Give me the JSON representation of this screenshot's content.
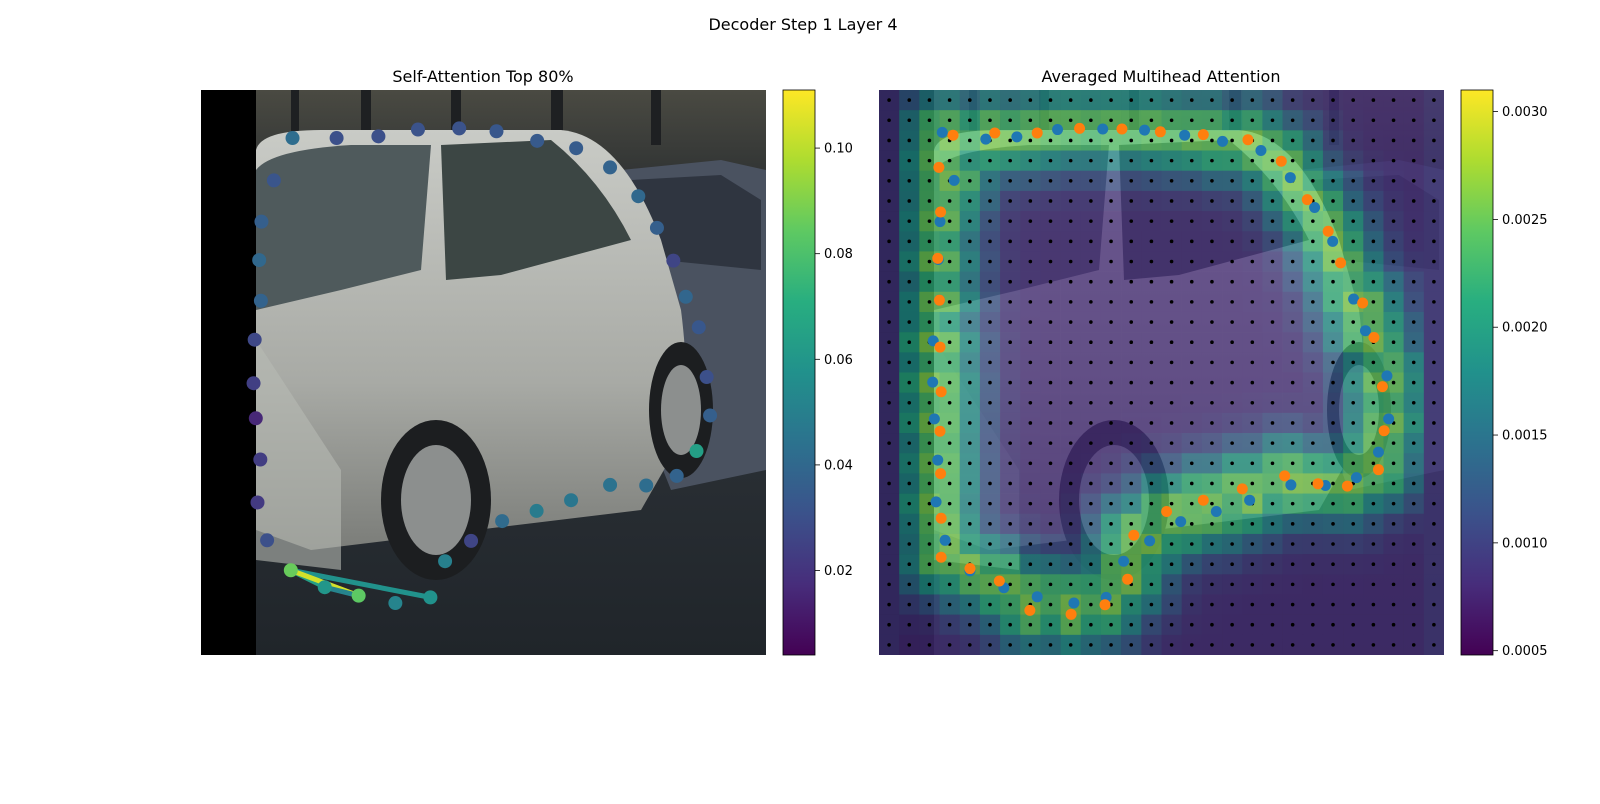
{
  "figure": {
    "suptitle": "Decoder Step 1 Layer 4"
  },
  "chart_data": [
    {
      "type": "scatter",
      "title": "Self-Attention Top 80%",
      "xlabel": "",
      "ylabel": "",
      "xlim": [
        0,
        1
      ],
      "ylim": [
        1,
        0
      ],
      "background": "photo: silver hatchback car on street, black strip on left edge",
      "grid": false,
      "colorbar": {
        "colormap": "viridis",
        "range": [
          0.004,
          0.111
        ],
        "ticks": [
          0.02,
          0.04,
          0.06,
          0.08,
          0.1
        ],
        "tick_labels": [
          "0.02",
          "0.04",
          "0.06",
          "0.08",
          "0.10"
        ]
      },
      "points": [
        {
          "x": 0.162,
          "y": 0.085,
          "v": 0.042
        },
        {
          "x": 0.24,
          "y": 0.085,
          "v": 0.03
        },
        {
          "x": 0.314,
          "y": 0.082,
          "v": 0.03
        },
        {
          "x": 0.384,
          "y": 0.07,
          "v": 0.031
        },
        {
          "x": 0.457,
          "y": 0.068,
          "v": 0.031
        },
        {
          "x": 0.523,
          "y": 0.073,
          "v": 0.033
        },
        {
          "x": 0.595,
          "y": 0.09,
          "v": 0.034
        },
        {
          "x": 0.664,
          "y": 0.103,
          "v": 0.035
        },
        {
          "x": 0.724,
          "y": 0.137,
          "v": 0.038
        },
        {
          "x": 0.774,
          "y": 0.188,
          "v": 0.04
        },
        {
          "x": 0.807,
          "y": 0.244,
          "v": 0.036
        },
        {
          "x": 0.836,
          "y": 0.302,
          "v": 0.026
        },
        {
          "x": 0.858,
          "y": 0.366,
          "v": 0.039
        },
        {
          "x": 0.881,
          "y": 0.42,
          "v": 0.033
        },
        {
          "x": 0.895,
          "y": 0.508,
          "v": 0.03
        },
        {
          "x": 0.901,
          "y": 0.576,
          "v": 0.036
        },
        {
          "x": 0.877,
          "y": 0.639,
          "v": 0.064
        },
        {
          "x": 0.842,
          "y": 0.683,
          "v": 0.038
        },
        {
          "x": 0.788,
          "y": 0.7,
          "v": 0.042
        },
        {
          "x": 0.724,
          "y": 0.699,
          "v": 0.044
        },
        {
          "x": 0.655,
          "y": 0.726,
          "v": 0.046
        },
        {
          "x": 0.594,
          "y": 0.745,
          "v": 0.048
        },
        {
          "x": 0.533,
          "y": 0.763,
          "v": 0.041
        },
        {
          "x": 0.478,
          "y": 0.798,
          "v": 0.026
        },
        {
          "x": 0.432,
          "y": 0.834,
          "v": 0.05
        },
        {
          "x": 0.406,
          "y": 0.898,
          "v": 0.058
        },
        {
          "x": 0.344,
          "y": 0.908,
          "v": 0.052
        },
        {
          "x": 0.279,
          "y": 0.895,
          "v": 0.084
        },
        {
          "x": 0.219,
          "y": 0.88,
          "v": 0.06
        },
        {
          "x": 0.159,
          "y": 0.85,
          "v": 0.086
        },
        {
          "x": 0.117,
          "y": 0.797,
          "v": 0.03
        },
        {
          "x": 0.1,
          "y": 0.73,
          "v": 0.022
        },
        {
          "x": 0.105,
          "y": 0.654,
          "v": 0.023
        },
        {
          "x": 0.097,
          "y": 0.581,
          "v": 0.016
        },
        {
          "x": 0.093,
          "y": 0.519,
          "v": 0.024
        },
        {
          "x": 0.095,
          "y": 0.442,
          "v": 0.027
        },
        {
          "x": 0.106,
          "y": 0.373,
          "v": 0.038
        },
        {
          "x": 0.103,
          "y": 0.301,
          "v": 0.04
        },
        {
          "x": 0.107,
          "y": 0.233,
          "v": 0.036
        },
        {
          "x": 0.129,
          "y": 0.16,
          "v": 0.032
        }
      ],
      "links": [
        {
          "from": 29,
          "to": 25,
          "v": 0.058
        },
        {
          "from": 29,
          "to": 28,
          "v": 0.064
        },
        {
          "from": 29,
          "to": 27,
          "v": 0.104
        },
        {
          "from": 28,
          "to": 27,
          "v": 0.052
        }
      ]
    },
    {
      "type": "heatmap",
      "title": "Averaged Multihead Attention",
      "xlabel": "",
      "ylabel": "",
      "background": "same car photo overlaid with attention heatmap",
      "grid_cells": [
        28,
        28
      ],
      "colorbar": {
        "colormap": "viridis",
        "range": [
          0.00048,
          0.0031
        ],
        "ticks": [
          0.0005,
          0.001,
          0.0015,
          0.002,
          0.0025,
          0.003
        ],
        "tick_labels": [
          "0.0005",
          "0.0010",
          "0.0015",
          "0.0020",
          "0.0025",
          "0.0030"
        ]
      },
      "reference_points_blue": [
        [
          0.112,
          0.075
        ],
        [
          0.189,
          0.087
        ],
        [
          0.244,
          0.083
        ],
        [
          0.316,
          0.07
        ],
        [
          0.396,
          0.069
        ],
        [
          0.47,
          0.071
        ],
        [
          0.541,
          0.08
        ],
        [
          0.608,
          0.091
        ],
        [
          0.676,
          0.107
        ],
        [
          0.728,
          0.155
        ],
        [
          0.771,
          0.208
        ],
        [
          0.803,
          0.268
        ],
        [
          0.84,
          0.37
        ],
        [
          0.861,
          0.426
        ],
        [
          0.899,
          0.506
        ],
        [
          0.902,
          0.582
        ],
        [
          0.884,
          0.641
        ],
        [
          0.845,
          0.686
        ],
        [
          0.79,
          0.7
        ],
        [
          0.729,
          0.699
        ],
        [
          0.656,
          0.726
        ],
        [
          0.597,
          0.746
        ],
        [
          0.534,
          0.764
        ],
        [
          0.479,
          0.798
        ],
        [
          0.433,
          0.834
        ],
        [
          0.402,
          0.898
        ],
        [
          0.345,
          0.908
        ],
        [
          0.28,
          0.897
        ],
        [
          0.221,
          0.881
        ],
        [
          0.161,
          0.851
        ],
        [
          0.117,
          0.797
        ],
        [
          0.101,
          0.729
        ],
        [
          0.104,
          0.655
        ],
        [
          0.098,
          0.582
        ],
        [
          0.095,
          0.517
        ],
        [
          0.096,
          0.444
        ],
        [
          0.107,
          0.372
        ],
        [
          0.105,
          0.3
        ],
        [
          0.108,
          0.233
        ],
        [
          0.133,
          0.16
        ]
      ],
      "reference_points_orange": [
        [
          0.131,
          0.08
        ],
        [
          0.205,
          0.076
        ],
        [
          0.28,
          0.076
        ],
        [
          0.355,
          0.068
        ],
        [
          0.43,
          0.069
        ],
        [
          0.498,
          0.074
        ],
        [
          0.574,
          0.079
        ],
        [
          0.653,
          0.088
        ],
        [
          0.712,
          0.126
        ],
        [
          0.758,
          0.194
        ],
        [
          0.795,
          0.25
        ],
        [
          0.817,
          0.306
        ],
        [
          0.856,
          0.377
        ],
        [
          0.876,
          0.438
        ],
        [
          0.891,
          0.525
        ],
        [
          0.894,
          0.603
        ],
        [
          0.884,
          0.672
        ],
        [
          0.829,
          0.701
        ],
        [
          0.777,
          0.697
        ],
        [
          0.718,
          0.683
        ],
        [
          0.643,
          0.706
        ],
        [
          0.574,
          0.726
        ],
        [
          0.509,
          0.746
        ],
        [
          0.451,
          0.788
        ],
        [
          0.44,
          0.866
        ],
        [
          0.4,
          0.911
        ],
        [
          0.34,
          0.928
        ],
        [
          0.267,
          0.921
        ],
        [
          0.213,
          0.869
        ],
        [
          0.161,
          0.847
        ],
        [
          0.11,
          0.827
        ],
        [
          0.11,
          0.758
        ],
        [
          0.109,
          0.679
        ],
        [
          0.108,
          0.604
        ],
        [
          0.11,
          0.534
        ],
        [
          0.108,
          0.455
        ],
        [
          0.107,
          0.372
        ],
        [
          0.104,
          0.298
        ],
        [
          0.109,
          0.216
        ],
        [
          0.106,
          0.137
        ]
      ]
    }
  ]
}
